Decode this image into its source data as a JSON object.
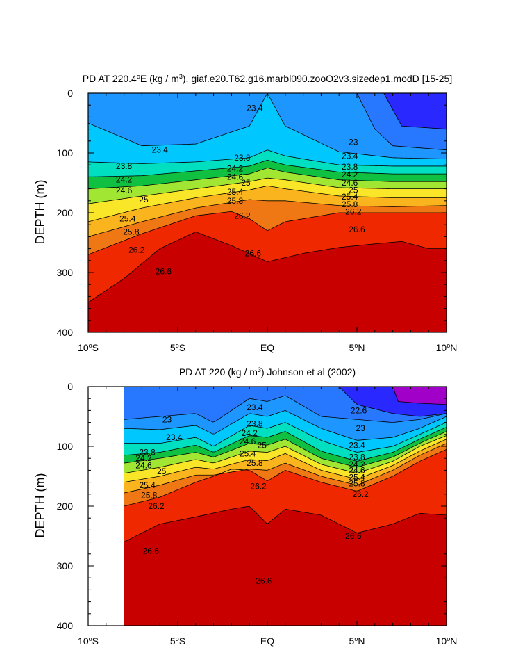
{
  "chart_data": [
    {
      "type": "contour",
      "title_prefix": "PD AT 220.4",
      "title_suffix": "E (kg / m",
      "title_end": "), giaf.e20.T62.g16.marbl090.zooO2v3.sizedep1.modD [15-25]",
      "ylabel": "DEPTH (m)",
      "xlim": [
        -10,
        10
      ],
      "ylim": [
        0,
        400
      ],
      "x_ticks": [
        -10,
        -5,
        0,
        5,
        10
      ],
      "x_tick_labels": [
        "10",
        "5",
        "EQ",
        "5",
        "10"
      ],
      "x_tick_suffix": [
        "°S",
        "°S",
        "",
        "°N",
        "°N"
      ],
      "y_ticks": [
        0,
        100,
        200,
        300,
        400
      ],
      "y_tick_labels": [
        "0",
        "100",
        "200",
        "300",
        "400"
      ],
      "data_start_lon": -10,
      "levels": [
        22.2,
        22.6,
        23.0,
        23.4,
        23.8,
        24.2,
        24.6,
        25.0,
        25.4,
        25.8,
        26.2,
        26.6
      ],
      "surfaces": [
        {
          "level": 22.6,
          "x": [
            6.5,
            7.5,
            10
          ],
          "depth": [
            0,
            55,
            60
          ]
        },
        {
          "level": 23.0,
          "x": [
            5,
            6,
            7,
            10
          ],
          "depth": [
            0,
            60,
            88,
            95
          ]
        },
        {
          "level": 23.4,
          "x": [
            -10,
            -7,
            -4,
            -1,
            0,
            1,
            4,
            7,
            10
          ],
          "depth": [
            50,
            88,
            85,
            55,
            0,
            55,
            98,
            108,
            110
          ]
        },
        {
          "level": 23.8,
          "x": [
            -10,
            -7,
            -4,
            -1,
            0,
            1,
            4,
            7,
            10
          ],
          "depth": [
            115,
            118,
            115,
            108,
            95,
            105,
            120,
            122,
            122
          ]
        },
        {
          "level": 24.2,
          "x": [
            -10,
            -7,
            -4,
            -1,
            0,
            1,
            4,
            7,
            10
          ],
          "depth": [
            140,
            138,
            130,
            122,
            112,
            120,
            132,
            135,
            135
          ]
        },
        {
          "level": 24.6,
          "x": [
            -10,
            -7,
            -4,
            -1,
            0,
            1,
            4,
            7,
            10
          ],
          "depth": [
            160,
            155,
            145,
            135,
            125,
            132,
            145,
            148,
            148
          ]
        },
        {
          "level": 25.0,
          "x": [
            -10,
            -7,
            -4,
            -1,
            0,
            1,
            4,
            7,
            10
          ],
          "depth": [
            185,
            172,
            160,
            148,
            142,
            145,
            158,
            160,
            160
          ]
        },
        {
          "level": 25.4,
          "x": [
            -10,
            -7,
            -4,
            -1,
            0,
            1,
            4,
            7,
            10
          ],
          "depth": [
            215,
            192,
            175,
            162,
            155,
            160,
            172,
            175,
            175
          ]
        },
        {
          "level": 25.8,
          "x": [
            -10,
            -7,
            -4,
            -1,
            0,
            1,
            4,
            7,
            10
          ],
          "depth": [
            240,
            215,
            192,
            178,
            180,
            180,
            188,
            190,
            188
          ]
        },
        {
          "level": 26.2,
          "x": [
            -10,
            -7,
            -4,
            -2,
            -1,
            0,
            1,
            4,
            7,
            10
          ],
          "depth": [
            270,
            235,
            205,
            198,
            210,
            230,
            215,
            200,
            200,
            200
          ]
        },
        {
          "level": 26.6,
          "x": [
            -10,
            -8,
            -6,
            -4,
            -2,
            0,
            2,
            4,
            6,
            7.5,
            9,
            10
          ],
          "depth": [
            350,
            310,
            260,
            232,
            255,
            282,
            268,
            258,
            252,
            248,
            260,
            260
          ]
        }
      ],
      "labels": [
        {
          "text": "23.4",
          "x": -0.7,
          "depth": 25
        },
        {
          "text": "23.4",
          "x": -6,
          "depth": 95
        },
        {
          "text": "23",
          "x": 4.8,
          "depth": 82
        },
        {
          "text": "23.4",
          "x": 4.6,
          "depth": 105
        },
        {
          "text": "23.8",
          "x": 4.6,
          "depth": 123
        },
        {
          "text": "24.2",
          "x": 4.6,
          "depth": 136
        },
        {
          "text": "24.6",
          "x": 4.6,
          "depth": 150
        },
        {
          "text": "25",
          "x": 4.8,
          "depth": 162
        },
        {
          "text": "25.4",
          "x": 4.6,
          "depth": 173
        },
        {
          "text": "25.8",
          "x": 4.6,
          "depth": 186
        },
        {
          "text": "26.2",
          "x": 4.8,
          "depth": 198
        },
        {
          "text": "26.6",
          "x": 5,
          "depth": 228
        },
        {
          "text": "23.8",
          "x": -1.4,
          "depth": 108
        },
        {
          "text": "24.2",
          "x": -1.8,
          "depth": 126
        },
        {
          "text": "24.6",
          "x": -1.8,
          "depth": 140
        },
        {
          "text": "25",
          "x": -1.2,
          "depth": 150
        },
        {
          "text": "25.4",
          "x": -1.8,
          "depth": 165
        },
        {
          "text": "25.8",
          "x": -1.8,
          "depth": 180
        },
        {
          "text": "26.2",
          "x": -1.4,
          "depth": 205
        },
        {
          "text": "26.6",
          "x": -0.8,
          "depth": 268
        },
        {
          "text": "23.8",
          "x": -8,
          "depth": 122
        },
        {
          "text": "24.2",
          "x": -8,
          "depth": 145
        },
        {
          "text": "24.6",
          "x": -8,
          "depth": 163
        },
        {
          "text": "25",
          "x": -6.9,
          "depth": 178
        },
        {
          "text": "25.4",
          "x": -7.8,
          "depth": 210
        },
        {
          "text": "25.8",
          "x": -7.6,
          "depth": 232
        },
        {
          "text": "26.2",
          "x": -7.3,
          "depth": 262
        },
        {
          "text": "26.6",
          "x": -5.8,
          "depth": 298
        }
      ]
    },
    {
      "type": "contour",
      "title_prefix": "PD AT 220 (kg / m",
      "title_suffix": ") Johnson et al (2002)",
      "title_end": "",
      "ylabel": "DEPTH (m)",
      "xlim": [
        -10,
        10
      ],
      "ylim": [
        0,
        400
      ],
      "x_ticks": [
        -10,
        -5,
        0,
        5,
        10
      ],
      "x_tick_labels": [
        "10",
        "5",
        "EQ",
        "5",
        "10"
      ],
      "x_tick_suffix": [
        "°S",
        "°S",
        "",
        "°N",
        "°N"
      ],
      "y_ticks": [
        0,
        100,
        200,
        300,
        400
      ],
      "y_tick_labels": [
        "0",
        "100",
        "200",
        "300",
        "400"
      ],
      "data_start_lon": -8,
      "levels": [
        22.2,
        22.6,
        23.0,
        23.4,
        23.8,
        24.2,
        24.6,
        25.0,
        25.4,
        25.8,
        26.2,
        26.6
      ],
      "surfaces": [
        {
          "level": 22.2,
          "x": [
            7,
            7.3,
            8.5,
            10
          ],
          "depth": [
            0,
            25,
            28,
            30
          ]
        },
        {
          "level": 22.6,
          "x": [
            4,
            5,
            7,
            8.5,
            10
          ],
          "depth": [
            0,
            30,
            45,
            50,
            45
          ]
        },
        {
          "level": 23.0,
          "x": [
            -8,
            -6,
            -4,
            -3,
            -1,
            0,
            1,
            3,
            5,
            7,
            8.5,
            10
          ],
          "depth": [
            55,
            50,
            45,
            60,
            20,
            25,
            15,
            50,
            55,
            60,
            55,
            45
          ]
        },
        {
          "level": 23.4,
          "x": [
            -8,
            -6,
            -4,
            -3,
            -1,
            0,
            1,
            3,
            5,
            7,
            8.5,
            10
          ],
          "depth": [
            70,
            72,
            65,
            80,
            45,
            50,
            40,
            70,
            90,
            85,
            70,
            50
          ]
        },
        {
          "level": 23.8,
          "x": [
            -8,
            -6,
            -4,
            -3,
            -1,
            0,
            1,
            3,
            5,
            7,
            8.5,
            10
          ],
          "depth": [
            95,
            95,
            85,
            100,
            65,
            70,
            60,
            90,
            110,
            100,
            80,
            60
          ]
        },
        {
          "level": 24.2,
          "x": [
            -8,
            -6,
            -4,
            -3,
            -1,
            0,
            1,
            3,
            5,
            7,
            8.5,
            10
          ],
          "depth": [
            115,
            110,
            98,
            110,
            82,
            85,
            75,
            108,
            125,
            110,
            88,
            68
          ]
        },
        {
          "level": 24.6,
          "x": [
            -8,
            -6,
            -4,
            -3,
            -1,
            0,
            1,
            3,
            5,
            7,
            8.5,
            10
          ],
          "depth": [
            128,
            120,
            110,
            118,
            95,
            98,
            88,
            120,
            135,
            118,
            95,
            75
          ]
        },
        {
          "level": 25.0,
          "x": [
            -8,
            -6,
            -4,
            -3,
            -1,
            0,
            1,
            3,
            5,
            7,
            8.5,
            10
          ],
          "depth": [
            145,
            135,
            122,
            128,
            108,
            110,
            100,
            130,
            145,
            125,
            100,
            82
          ]
        },
        {
          "level": 25.4,
          "x": [
            -8,
            -6,
            -4,
            -3,
            -1,
            0,
            1,
            3,
            5,
            7,
            8.5,
            10
          ],
          "depth": [
            160,
            150,
            135,
            138,
            122,
            124,
            112,
            140,
            155,
            132,
            108,
            88
          ]
        },
        {
          "level": 25.8,
          "x": [
            -8,
            -6,
            -4,
            -3,
            -1,
            0,
            1,
            3,
            5,
            7,
            8.5,
            10
          ],
          "depth": [
            178,
            165,
            148,
            148,
            138,
            140,
            128,
            150,
            165,
            140,
            115,
            95
          ]
        },
        {
          "level": 26.2,
          "x": [
            -8,
            -6,
            -4,
            -3,
            -2,
            -1,
            0,
            1,
            3,
            5,
            7,
            8.5,
            10
          ],
          "depth": [
            200,
            185,
            160,
            150,
            138,
            140,
            158,
            140,
            160,
            175,
            150,
            125,
            105
          ]
        },
        {
          "level": 26.6,
          "x": [
            -8,
            -6,
            -4,
            -2,
            -1,
            0,
            1,
            3,
            5,
            7,
            8.5,
            10
          ],
          "depth": [
            260,
            230,
            218,
            205,
            200,
            230,
            205,
            215,
            245,
            230,
            212,
            215
          ]
        }
      ],
      "labels": [
        {
          "text": "23.4",
          "x": -0.7,
          "depth": 35
        },
        {
          "text": "23.8",
          "x": -0.7,
          "depth": 62
        },
        {
          "text": "24.2",
          "x": -1.0,
          "depth": 78
        },
        {
          "text": "24.6",
          "x": -1.1,
          "depth": 92
        },
        {
          "text": "25",
          "x": -0.3,
          "depth": 98
        },
        {
          "text": "25.4",
          "x": -1.1,
          "depth": 112
        },
        {
          "text": "25.8",
          "x": -0.7,
          "depth": 128
        },
        {
          "text": "26.2",
          "x": -0.5,
          "depth": 167
        },
        {
          "text": "23",
          "x": -5.6,
          "depth": 55
        },
        {
          "text": "23.4",
          "x": -5.2,
          "depth": 85
        },
        {
          "text": "23.8",
          "x": -6.7,
          "depth": 110
        },
        {
          "text": "24.2",
          "x": -6.9,
          "depth": 120
        },
        {
          "text": "24.6",
          "x": -6.9,
          "depth": 132
        },
        {
          "text": "25",
          "x": -5.9,
          "depth": 142
        },
        {
          "text": "25.4",
          "x": -6.7,
          "depth": 165
        },
        {
          "text": "25.8",
          "x": -6.6,
          "depth": 182
        },
        {
          "text": "26.2",
          "x": -6.2,
          "depth": 200
        },
        {
          "text": "26.6",
          "x": -6.5,
          "depth": 275
        },
        {
          "text": "26.6",
          "x": -0.2,
          "depth": 325
        },
        {
          "text": "26.6",
          "x": 4.8,
          "depth": 250
        },
        {
          "text": "22.6",
          "x": 5.1,
          "depth": 40
        },
        {
          "text": "23",
          "x": 5.2,
          "depth": 70
        },
        {
          "text": "23.4",
          "x": 5.0,
          "depth": 98
        },
        {
          "text": "23.8",
          "x": 5.0,
          "depth": 118
        },
        {
          "text": "24.2",
          "x": 5.0,
          "depth": 130
        },
        {
          "text": "24.6",
          "x": 5.0,
          "depth": 140
        },
        {
          "text": "25.4",
          "x": 5.0,
          "depth": 152
        },
        {
          "text": "25.8",
          "x": 5.0,
          "depth": 162
        },
        {
          "text": "26.2",
          "x": 5.2,
          "depth": 180
        }
      ]
    }
  ],
  "colors": {
    "levels": [
      "#a000c8",
      "#2828ff",
      "#2878ff",
      "#1e96ff",
      "#00c8ff",
      "#00e0c0",
      "#10c040",
      "#a0e632",
      "#fae628",
      "#fab41e",
      "#f07814",
      "#f02800",
      "#c80000"
    ]
  }
}
